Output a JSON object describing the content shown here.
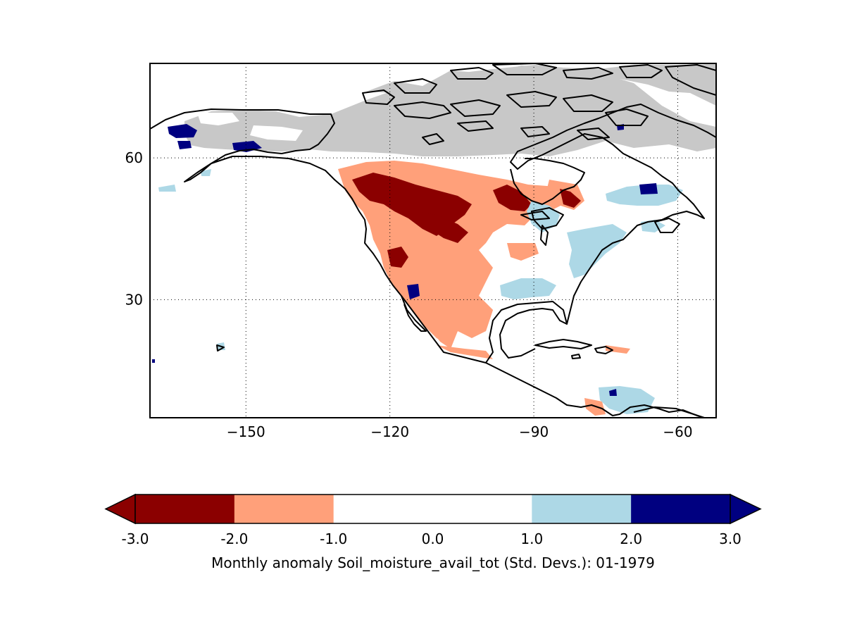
{
  "map": {
    "projection": "cylindrical lon/lat",
    "lon_range": [
      -170,
      -52
    ],
    "lat_range": [
      5,
      80
    ],
    "grid": "dotted",
    "x_ticks": [
      {
        "value": -150,
        "label": "−150"
      },
      {
        "value": -120,
        "label": "−120"
      },
      {
        "value": -90,
        "label": "−90"
      },
      {
        "value": -60,
        "label": "−60"
      }
    ],
    "y_ticks": [
      {
        "value": 60,
        "label": "60"
      },
      {
        "value": 30,
        "label": "30"
      }
    ],
    "colors": {
      "land_missing": "#c8c8c8",
      "coast": "#000000",
      "frame": "#000000"
    }
  },
  "colorbar": {
    "title": "Monthly anomaly Soil_moisture_avail_tot (Std. Devs.): 01-1979",
    "extend": "both",
    "boundaries": [
      -3.0,
      -2.0,
      -1.0,
      0.0,
      1.0,
      2.0,
      3.0
    ],
    "tick_labels": [
      "-3.0",
      "-2.0",
      "-1.0",
      "0.0",
      "1.0",
      "2.0",
      "3.0"
    ],
    "colors": [
      "#8b0000",
      "#ffa07a",
      "#ffffff",
      "#ffffff",
      "#add8e6",
      "#000080"
    ],
    "under_color": "#8b0000",
    "over_color": "#000080"
  }
}
